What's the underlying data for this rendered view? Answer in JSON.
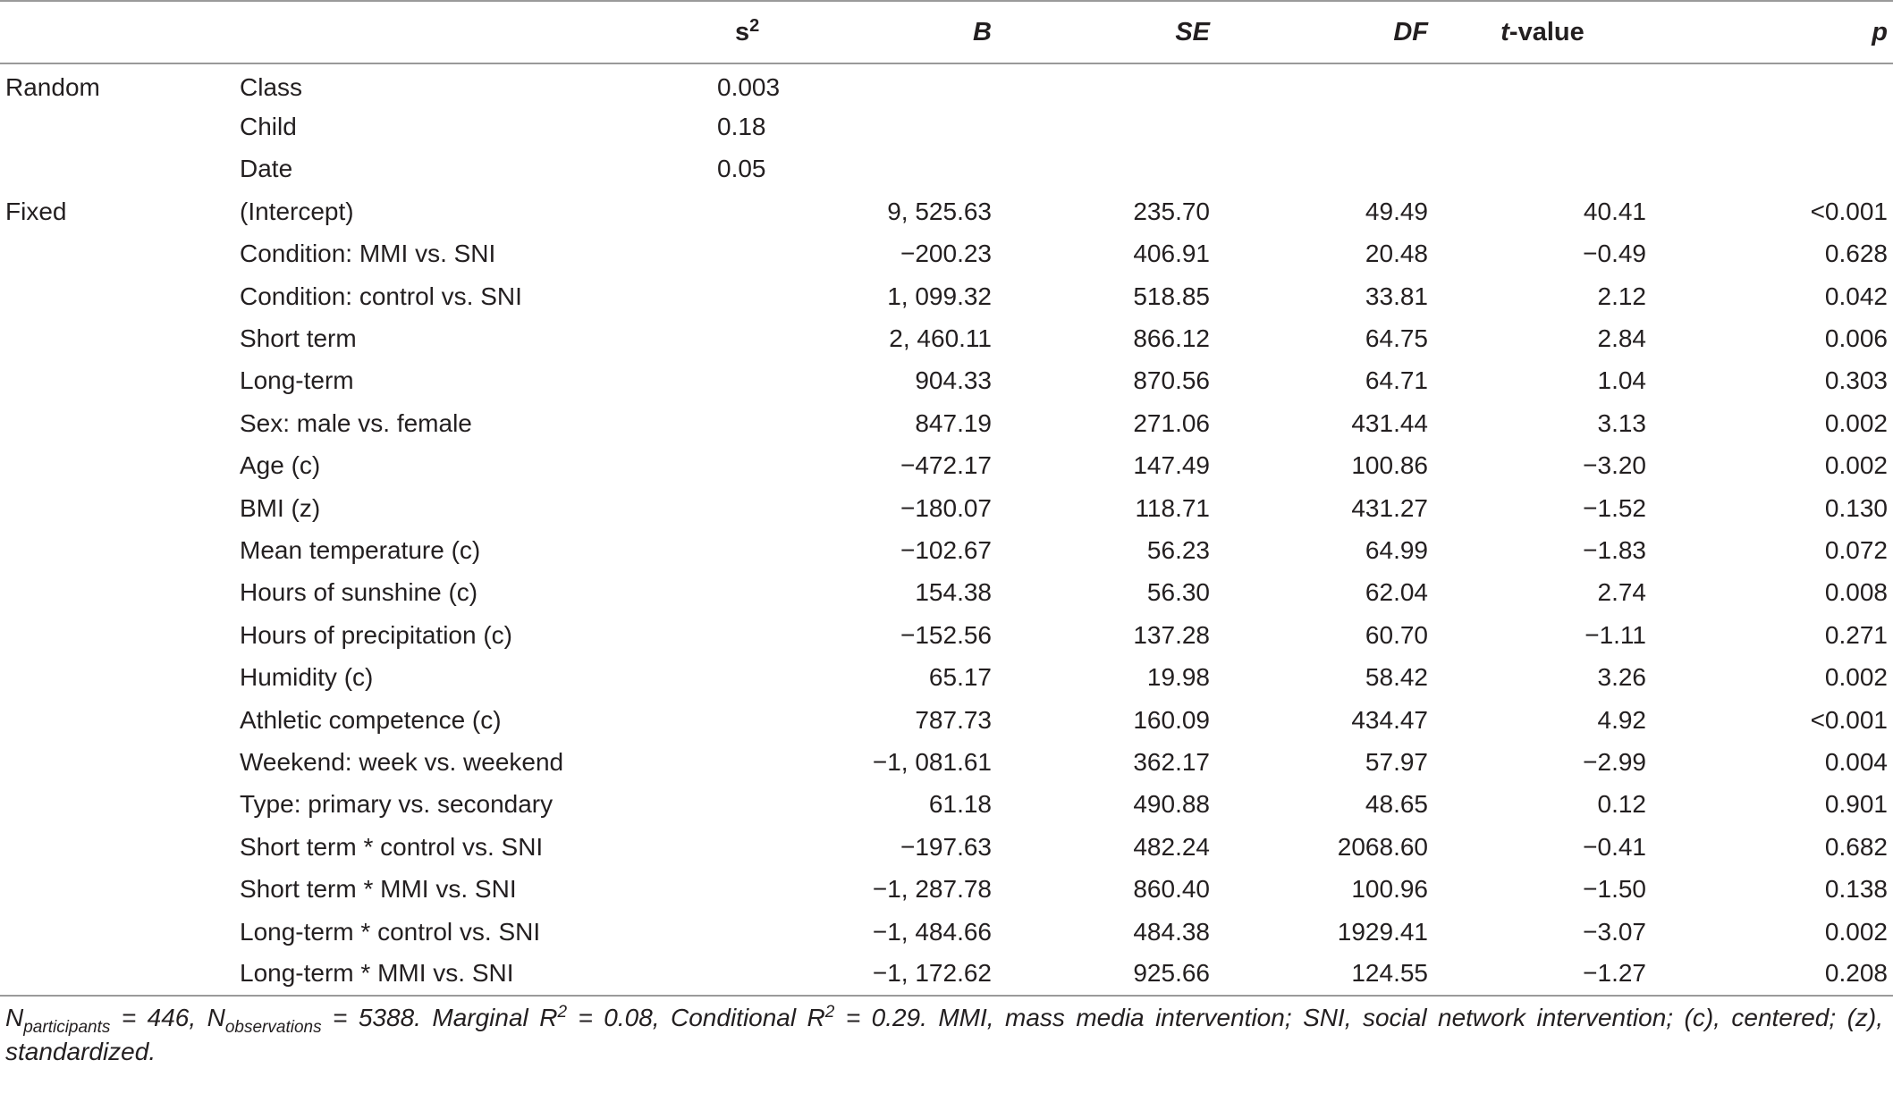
{
  "header": {
    "col_group": "",
    "col_term": "",
    "s2_base": "s",
    "s2_sup": "2",
    "b": "B",
    "se": "SE",
    "df": "DF",
    "t_italic": "t",
    "t_rest": "-value",
    "p": "p"
  },
  "rows": [
    {
      "group": "Random",
      "term": "Class",
      "s2": "0.003",
      "b": "",
      "se": "",
      "df": "",
      "t": "",
      "p": ""
    },
    {
      "group": "",
      "term": "Child",
      "s2": "0.18",
      "b": "",
      "se": "",
      "df": "",
      "t": "",
      "p": ""
    },
    {
      "group": "",
      "term": "Date",
      "s2": "0.05",
      "b": "",
      "se": "",
      "df": "",
      "t": "",
      "p": ""
    },
    {
      "group": "Fixed",
      "term": "(Intercept)",
      "s2": "",
      "b": "9, 525.63",
      "se": "235.70",
      "df": "49.49",
      "t": "40.41",
      "p": "<0.001"
    },
    {
      "group": "",
      "term": "Condition: MMI vs. SNI",
      "s2": "",
      "b": "−200.23",
      "se": "406.91",
      "df": "20.48",
      "t": "−0.49",
      "p": "0.628"
    },
    {
      "group": "",
      "term": "Condition: control vs. SNI",
      "s2": "",
      "b": "1, 099.32",
      "se": "518.85",
      "df": "33.81",
      "t": "2.12",
      "p": "0.042"
    },
    {
      "group": "",
      "term": "Short term",
      "s2": "",
      "b": "2, 460.11",
      "se": "866.12",
      "df": "64.75",
      "t": "2.84",
      "p": "0.006"
    },
    {
      "group": "",
      "term": "Long-term",
      "s2": "",
      "b": "904.33",
      "se": "870.56",
      "df": "64.71",
      "t": "1.04",
      "p": "0.303"
    },
    {
      "group": "",
      "term": "Sex: male vs. female",
      "s2": "",
      "b": "847.19",
      "se": "271.06",
      "df": "431.44",
      "t": "3.13",
      "p": "0.002"
    },
    {
      "group": "",
      "term": "Age (c)",
      "s2": "",
      "b": "−472.17",
      "se": "147.49",
      "df": "100.86",
      "t": "−3.20",
      "p": "0.002"
    },
    {
      "group": "",
      "term": "BMI (z)",
      "s2": "",
      "b": "−180.07",
      "se": "118.71",
      "df": "431.27",
      "t": "−1.52",
      "p": "0.130"
    },
    {
      "group": "",
      "term": "Mean temperature (c)",
      "s2": "",
      "b": "−102.67",
      "se": "56.23",
      "df": "64.99",
      "t": "−1.83",
      "p": "0.072"
    },
    {
      "group": "",
      "term": "Hours of sunshine (c)",
      "s2": "",
      "b": "154.38",
      "se": "56.30",
      "df": "62.04",
      "t": "2.74",
      "p": "0.008"
    },
    {
      "group": "",
      "term": "Hours of precipitation (c)",
      "s2": "",
      "b": "−152.56",
      "se": "137.28",
      "df": "60.70",
      "t": "−1.11",
      "p": "0.271"
    },
    {
      "group": "",
      "term": "Humidity (c)",
      "s2": "",
      "b": "65.17",
      "se": "19.98",
      "df": "58.42",
      "t": "3.26",
      "p": "0.002"
    },
    {
      "group": "",
      "term": "Athletic competence (c)",
      "s2": "",
      "b": "787.73",
      "se": "160.09",
      "df": "434.47",
      "t": "4.92",
      "p": "<0.001"
    },
    {
      "group": "",
      "term": "Weekend: week vs. weekend",
      "s2": "",
      "b": "−1, 081.61",
      "se": "362.17",
      "df": "57.97",
      "t": "−2.99",
      "p": "0.004"
    },
    {
      "group": "",
      "term": "Type: primary vs. secondary",
      "s2": "",
      "b": "61.18",
      "se": "490.88",
      "df": "48.65",
      "t": "0.12",
      "p": "0.901"
    },
    {
      "group": "",
      "term": "Short term * control vs. SNI",
      "s2": "",
      "b": "−197.63",
      "se": "482.24",
      "df": "2068.60",
      "t": "−0.41",
      "p": "0.682"
    },
    {
      "group": "",
      "term": "Short term * MMI vs. SNI",
      "s2": "",
      "b": "−1, 287.78",
      "se": "860.40",
      "df": "100.96",
      "t": "−1.50",
      "p": "0.138"
    },
    {
      "group": "",
      "term": "Long-term * control vs. SNI",
      "s2": "",
      "b": "−1, 484.66",
      "se": "484.38",
      "df": "1929.41",
      "t": "−3.07",
      "p": "0.002"
    },
    {
      "group": "",
      "term": "Long-term * MMI vs. SNI",
      "s2": "",
      "b": "−1, 172.62",
      "se": "925.66",
      "df": "124.55",
      "t": "−1.27",
      "p": "0.208"
    }
  ],
  "footnote": {
    "n_part_base": "N",
    "n_part_sub": "participants",
    "n_part_val": " = 446, ",
    "n_obs_base": "N",
    "n_obs_sub": "observations",
    "n_obs_val": " = 5388. Marginal R",
    "marginal_sup": "2",
    "marginal_val": " = 0.08, Conditional R",
    "conditional_sup": "2",
    "rest": " = 0.29. MMI, mass media intervention; SNI, social network intervention; (c), centered; (z), standardized."
  }
}
